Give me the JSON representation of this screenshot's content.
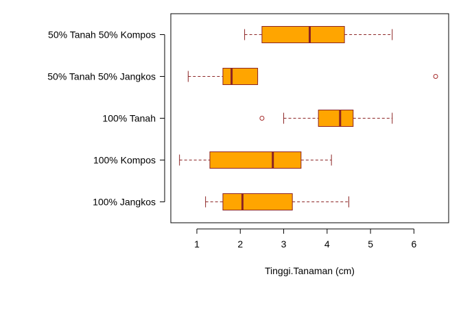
{
  "chart_data": {
    "type": "boxplot",
    "orientation": "horizontal",
    "title": "",
    "xlabel": "Tinggi.Tanaman (cm)",
    "ylabel": "",
    "xlim": [
      0.4,
      6.8
    ],
    "xticks": [
      1,
      2,
      3,
      4,
      5,
      6
    ],
    "grid": false,
    "legend": "none",
    "colors": {
      "box_fill": "#FFA500",
      "box_border": "#8B2323",
      "outlier": "#A52A2A"
    },
    "categories": [
      "100% Jangkos",
      "100% Kompos",
      "100% Tanah",
      "50% Tanah 50% Jangkos",
      "50% Tanah 50% Kompos"
    ],
    "boxes": [
      {
        "category": "100% Jangkos",
        "min": 1.2,
        "q1": 1.6,
        "median": 2.05,
        "q3": 3.2,
        "max": 4.5,
        "outliers": []
      },
      {
        "category": "100% Kompos",
        "min": 0.6,
        "q1": 1.3,
        "median": 2.75,
        "q3": 3.4,
        "max": 4.1,
        "outliers": []
      },
      {
        "category": "100% Tanah",
        "min": 3.0,
        "q1": 3.8,
        "median": 4.3,
        "q3": 4.6,
        "max": 5.5,
        "outliers": [
          2.5
        ]
      },
      {
        "category": "50% Tanah 50% Jangkos",
        "min": 0.8,
        "q1": 1.6,
        "median": 1.8,
        "q3": 2.4,
        "max": 2.4,
        "outliers": [
          6.5
        ]
      },
      {
        "category": "50% Tanah 50% Kompos",
        "min": 2.1,
        "q1": 2.5,
        "median": 3.6,
        "q3": 4.4,
        "max": 5.5,
        "outliers": []
      }
    ]
  }
}
